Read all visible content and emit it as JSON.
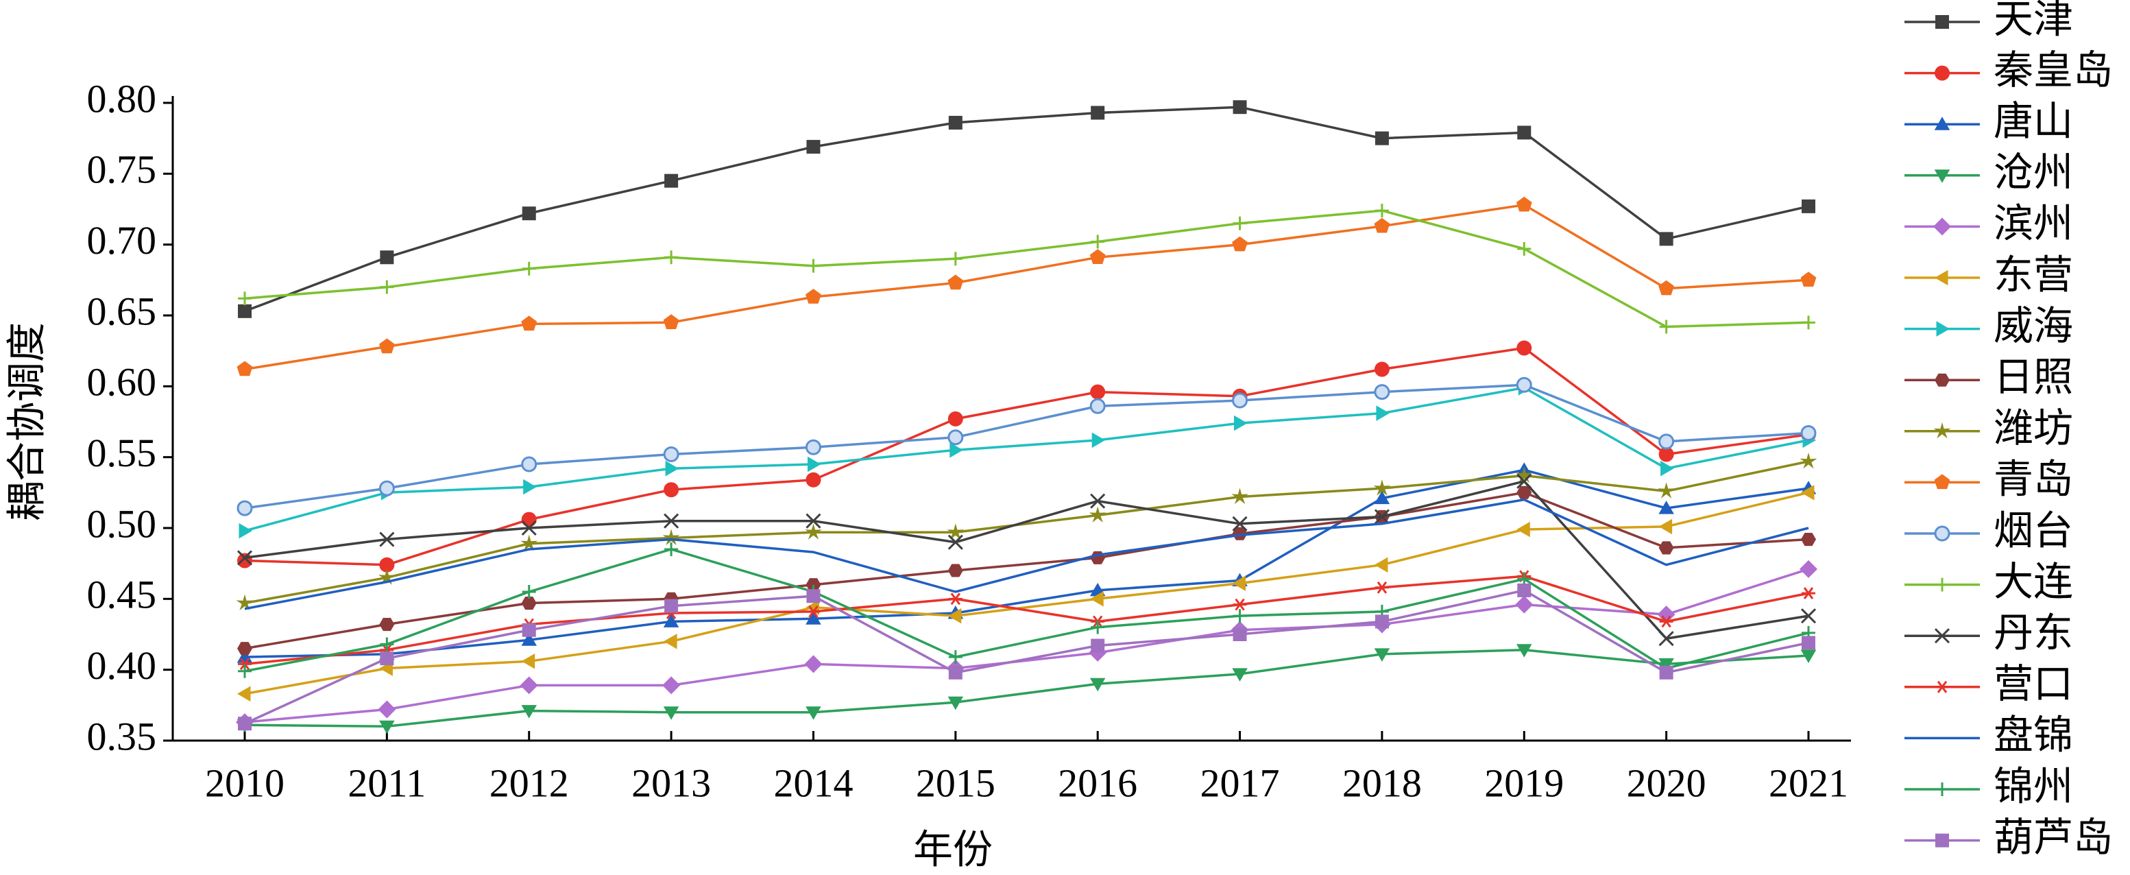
{
  "chart_data": {
    "type": "line",
    "xlabel": "年份",
    "ylabel": "耦合协调度",
    "categories": [
      "2010",
      "2011",
      "2012",
      "2013",
      "2014",
      "2015",
      "2016",
      "2017",
      "2018",
      "2019",
      "2020",
      "2021"
    ],
    "ylim": [
      0.35,
      0.8
    ],
    "yticks": [
      0.35,
      {
        "value": 0.4,
        "label": "0.40"
      },
      0.45,
      {
        "value": 0.5,
        "label": "0.50"
      },
      0.55,
      {
        "value": 0.6,
        "label": "0.60"
      },
      0.65,
      {
        "value": 0.7,
        "label": "0.70"
      },
      0.75,
      {
        "value": 0.8,
        "label": "0.80"
      }
    ],
    "grid": false,
    "legend": "right",
    "series": [
      {
        "name": "天津",
        "color": "#404040",
        "marker": "square",
        "values": [
          0.653,
          0.691,
          0.722,
          0.745,
          0.769,
          0.786,
          0.793,
          0.797,
          0.775,
          0.779,
          0.704,
          0.727
        ]
      },
      {
        "name": "秦皇岛",
        "color": "#e8332a",
        "marker": "circle",
        "values": [
          0.477,
          0.474,
          0.506,
          0.527,
          0.534,
          0.577,
          0.596,
          0.593,
          0.612,
          0.627,
          0.552,
          0.566
        ]
      },
      {
        "name": "唐山",
        "color": "#1f5fbf",
        "marker": "triangle-up",
        "values": [
          0.409,
          0.411,
          0.421,
          0.434,
          0.436,
          0.44,
          0.456,
          0.463,
          0.521,
          0.541,
          0.514,
          0.528
        ]
      },
      {
        "name": "沧州",
        "color": "#2ca05a",
        "marker": "triangle-down",
        "values": [
          0.361,
          0.36,
          0.371,
          0.37,
          0.37,
          0.377,
          0.39,
          0.397,
          0.411,
          0.414,
          0.404,
          0.41
        ]
      },
      {
        "name": "滨州",
        "color": "#b06ed0",
        "marker": "diamond",
        "values": [
          0.363,
          0.372,
          0.389,
          0.389,
          0.404,
          0.401,
          0.412,
          0.428,
          0.432,
          0.446,
          0.439,
          0.471
        ]
      },
      {
        "name": "东营",
        "color": "#d4a017",
        "marker": "triangle-left",
        "values": [
          0.383,
          0.401,
          0.406,
          0.42,
          0.444,
          0.438,
          0.45,
          0.461,
          0.474,
          0.499,
          0.501,
          0.525
        ]
      },
      {
        "name": "威海",
        "color": "#1fbfbf",
        "marker": "triangle-right",
        "values": [
          0.498,
          0.525,
          0.529,
          0.542,
          0.545,
          0.555,
          0.562,
          0.574,
          0.581,
          0.599,
          0.542,
          0.562
        ]
      },
      {
        "name": "日照",
        "color": "#8b3a3a",
        "marker": "hexagon",
        "values": [
          0.415,
          0.432,
          0.447,
          0.45,
          0.46,
          0.47,
          0.479,
          0.496,
          0.508,
          0.525,
          0.486,
          0.492
        ]
      },
      {
        "name": "潍坊",
        "color": "#8a8a1a",
        "marker": "star",
        "values": [
          0.447,
          0.465,
          0.489,
          0.493,
          0.497,
          0.497,
          0.509,
          0.522,
          0.528,
          0.537,
          0.526,
          0.547
        ]
      },
      {
        "name": "青岛",
        "color": "#f07020",
        "marker": "pentagon",
        "values": [
          0.612,
          0.628,
          0.644,
          0.645,
          0.663,
          0.673,
          0.691,
          0.7,
          0.713,
          0.728,
          0.669,
          0.675
        ]
      },
      {
        "name": "烟台",
        "color": "#5b8fd0",
        "marker": "ring",
        "values": [
          0.514,
          0.528,
          0.545,
          0.552,
          0.557,
          0.564,
          0.586,
          0.59,
          0.596,
          0.601,
          0.561,
          0.567
        ]
      },
      {
        "name": "大连",
        "color": "#7cc030",
        "marker": "plus",
        "values": [
          0.662,
          0.67,
          0.683,
          0.691,
          0.685,
          0.69,
          0.702,
          0.715,
          0.724,
          0.697,
          0.642,
          0.645
        ]
      },
      {
        "name": "丹东",
        "color": "#404040",
        "marker": "x",
        "values": [
          0.479,
          0.492,
          0.5,
          0.505,
          0.505,
          0.49,
          0.519,
          0.503,
          0.508,
          0.533,
          0.422,
          0.438
        ]
      },
      {
        "name": "营口",
        "color": "#e8332a",
        "marker": "asterisk",
        "values": [
          0.404,
          0.414,
          0.432,
          0.44,
          0.441,
          0.45,
          0.434,
          0.446,
          0.458,
          0.466,
          0.434,
          0.454
        ]
      },
      {
        "name": "盘锦",
        "color": "#1f5fbf",
        "marker": "none",
        "values": [
          0.443,
          0.462,
          0.485,
          0.492,
          0.483,
          0.455,
          0.481,
          0.495,
          0.503,
          0.52,
          0.474,
          0.5
        ]
      },
      {
        "name": "锦州",
        "color": "#2ca05a",
        "marker": "plus",
        "values": [
          0.399,
          0.418,
          0.455,
          0.485,
          0.455,
          0.409,
          0.43,
          0.438,
          0.441,
          0.464,
          0.401,
          0.426
        ]
      },
      {
        "name": "葫芦岛",
        "color": "#a070c0",
        "marker": "square",
        "values": [
          0.362,
          0.408,
          0.428,
          0.445,
          0.452,
          0.398,
          0.417,
          0.425,
          0.434,
          0.456,
          0.398,
          0.419
        ]
      }
    ]
  }
}
